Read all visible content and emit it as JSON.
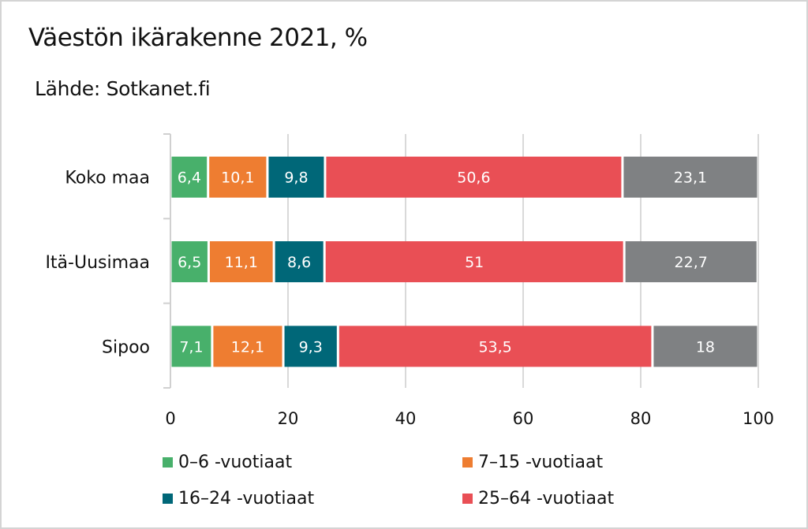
{
  "chart_data": {
    "type": "bar",
    "orientation": "horizontal",
    "stacked": true,
    "title": "Väestön ikärakenne 2021, %",
    "subtitle": "Lähde: Sotkanet.fi",
    "categories": [
      "Koko maa",
      "Itä-Uusimaa",
      "Sipoo"
    ],
    "series": [
      {
        "name": "0–6 -vuotiaat",
        "color": "#48b06b",
        "values": [
          6.4,
          6.5,
          7.1
        ],
        "labels": [
          "6,4",
          "6,5",
          "7,1"
        ]
      },
      {
        "name": "7–15 -vuotiaat",
        "color": "#ee7d31",
        "values": [
          10.1,
          11.1,
          12.1
        ],
        "labels": [
          "10,1",
          "11,1",
          "12,1"
        ]
      },
      {
        "name": "16–24 -vuotiaat",
        "color": "#006778",
        "values": [
          9.8,
          8.6,
          9.3
        ],
        "labels": [
          "9,8",
          "8,6",
          "9,3"
        ]
      },
      {
        "name": "25–64 -vuotiaat",
        "color": "#e94f55",
        "values": [
          50.6,
          51,
          53.5
        ],
        "labels": [
          "50,6",
          "51",
          "53,5"
        ]
      },
      {
        "color": "#7f8183",
        "values": [
          23.1,
          22.7,
          18
        ],
        "labels": [
          "23,1",
          "22,7",
          "18"
        ]
      }
    ],
    "xlim": [
      0,
      100
    ],
    "xticks": [
      "0",
      "20",
      "40",
      "60",
      "80",
      "100"
    ],
    "grid": true,
    "legend_position": "bottom"
  }
}
